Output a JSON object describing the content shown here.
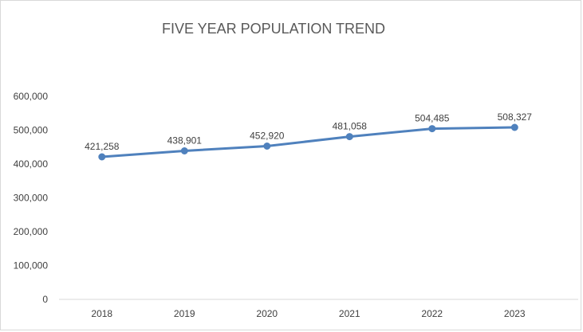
{
  "chart_data": {
    "type": "line",
    "title": "FIVE YEAR POPULATION TREND",
    "categories": [
      "2018",
      "2019",
      "2020",
      "2021",
      "2022",
      "2023"
    ],
    "series": [
      {
        "values": [
          421258,
          438901,
          452920,
          481058,
          504485,
          508327
        ],
        "data_labels": [
          "421,258",
          "438,901",
          "452,920",
          "481,058",
          "504,485",
          "508,327"
        ]
      }
    ],
    "y_ticks": [
      0,
      100000,
      200000,
      300000,
      400000,
      500000,
      600000
    ],
    "y_tick_labels": [
      "0",
      "100,000",
      "200,000",
      "300,000",
      "400,000",
      "500,000",
      "600,000"
    ],
    "ylim": [
      0,
      600000
    ],
    "grid": false,
    "legend": "none",
    "colors": {
      "line": "#4f81bd",
      "marker": "#4f81bd",
      "text": "#404040",
      "title": "#595959",
      "axis": "#d9d9d9"
    }
  }
}
